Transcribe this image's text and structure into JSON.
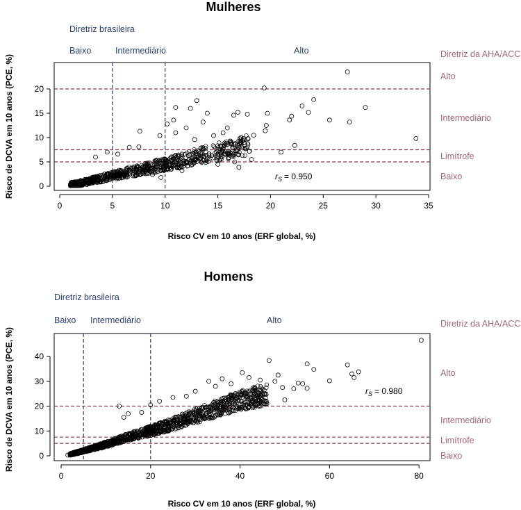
{
  "colors": {
    "brazil_guideline": "#2e3f6e",
    "aha_guideline": "#a0687a",
    "aha_line": "#8b3a4a",
    "points": "#000000"
  },
  "chart_data": [
    {
      "type": "scatter",
      "title": "Mulheres",
      "xlabel": "Risco CV em 10 anos (ERF global, %)",
      "ylabel": "Risco de DCVA em 10 anos (PCE, %)",
      "xlim": [
        0,
        35
      ],
      "ylim": [
        0,
        24
      ],
      "xticks": [
        0,
        5,
        10,
        15,
        20,
        25,
        30,
        35
      ],
      "yticks": [
        0,
        5,
        10,
        15,
        20
      ],
      "grid": false,
      "spearman_label": "r",
      "spearman_sub": "S",
      "spearman_value": "= 0.950",
      "brazil_guideline": {
        "title": "Diretriz brasileira",
        "cutoffs_x": [
          5,
          10
        ],
        "categories": [
          "Baixo",
          "Intermediário",
          "Alto"
        ]
      },
      "aha_guideline": {
        "title": "Diretriz da AHA/ACC",
        "cutoffs_y": [
          5,
          7.5,
          20
        ],
        "categories": [
          "Baixo",
          "Limítrofe",
          "Intermediário",
          "Alto"
        ]
      },
      "points": [
        [
          27.3,
          23.5
        ],
        [
          33.8,
          9.8
        ],
        [
          29.0,
          16.2
        ],
        [
          27.5,
          13.2
        ],
        [
          25.6,
          13.6
        ],
        [
          24.1,
          17.8
        ],
        [
          23.0,
          16.5
        ],
        [
          23.6,
          15.2
        ],
        [
          22.0,
          14.4
        ],
        [
          21.8,
          13.6
        ],
        [
          22.3,
          8.4
        ],
        [
          21.0,
          7.0
        ],
        [
          19.4,
          20.2
        ],
        [
          19.7,
          15.0
        ],
        [
          19.6,
          12.5
        ],
        [
          19.5,
          11.4
        ],
        [
          18.4,
          10.5
        ],
        [
          18.0,
          7.2
        ],
        [
          17.8,
          14.8
        ],
        [
          17.5,
          9.5
        ],
        [
          16.9,
          15.2
        ],
        [
          16.5,
          14.6
        ],
        [
          15.9,
          12.0
        ],
        [
          15.5,
          11.0
        ],
        [
          15.2,
          7.0
        ],
        [
          14.6,
          10.4
        ],
        [
          14.0,
          15.0
        ],
        [
          13.6,
          13.2
        ],
        [
          12.4,
          16.0
        ],
        [
          13.0,
          17.6
        ],
        [
          11.0,
          16.2
        ],
        [
          10.8,
          13.6
        ],
        [
          12.0,
          12.0
        ],
        [
          11.0,
          11.0
        ],
        [
          12.8,
          9.6
        ],
        [
          13.2,
          6.2
        ],
        [
          14.5,
          5.8
        ],
        [
          15.0,
          4.5
        ],
        [
          16.6,
          5.0
        ],
        [
          17.0,
          3.9
        ],
        [
          18.2,
          5.5
        ],
        [
          12.0,
          4.8
        ],
        [
          11.6,
          3.2
        ],
        [
          10.2,
          12.8
        ],
        [
          9.5,
          10.4
        ],
        [
          7.6,
          11.3
        ],
        [
          7.5,
          8.1
        ],
        [
          6.6,
          8.0
        ],
        [
          5.5,
          6.6
        ],
        [
          4.5,
          7.0
        ],
        [
          3.4,
          6.0
        ],
        [
          8.8,
          2.4
        ],
        [
          9.6,
          1.8
        ],
        [
          13.8,
          7.8
        ]
      ],
      "cloud": [
        [
          1.0,
          0.3
        ],
        [
          1.6,
          0.5
        ],
        [
          2.5,
          0.9
        ],
        [
          3.5,
          1.4
        ],
        [
          4.5,
          1.9
        ],
        [
          5.5,
          2.4
        ],
        [
          6.5,
          2.9
        ],
        [
          7.5,
          3.3
        ],
        [
          8.5,
          3.8
        ],
        [
          9.5,
          4.3
        ],
        [
          11,
          5.0
        ],
        [
          12.5,
          5.8
        ],
        [
          14,
          6.6
        ],
        [
          16,
          7.5
        ],
        [
          18,
          8.6
        ]
      ]
    },
    {
      "type": "scatter",
      "title": "Homens",
      "xlabel": "Risco CV em 10 anos (ERF global, %)",
      "ylabel": "Risco de DCVA em 10 anos (PCE, %)",
      "xlim": [
        0,
        82
      ],
      "ylim": [
        0,
        47
      ],
      "xticks": [
        0,
        20,
        40,
        60,
        80
      ],
      "yticks": [
        0,
        10,
        20,
        30,
        40
      ],
      "grid": false,
      "spearman_label": "r",
      "spearman_sub": "S",
      "spearman_value": "= 0.980",
      "brazil_guideline": {
        "title": "Diretriz brasileira",
        "cutoffs_x": [
          5,
          20
        ],
        "categories": [
          "Baixo",
          "Intermediário",
          "Alto"
        ]
      },
      "aha_guideline": {
        "title": "Diretriz da AHA/ACC",
        "cutoffs_y": [
          5,
          7.5,
          20
        ],
        "categories": [
          "Baixo",
          "Limítrofe",
          "Intermediário",
          "Alto"
        ]
      },
      "points": [
        [
          80.5,
          46.5
        ],
        [
          64.0,
          36.6
        ],
        [
          66.5,
          33.8
        ],
        [
          65.0,
          33.0
        ],
        [
          65.5,
          31.5
        ],
        [
          60.0,
          30.2
        ],
        [
          55.0,
          37.0
        ],
        [
          56.5,
          34.8
        ],
        [
          54.0,
          29.0
        ],
        [
          53.0,
          29.3
        ],
        [
          55.0,
          27.2
        ],
        [
          52.0,
          27.0
        ],
        [
          46.5,
          38.4
        ],
        [
          48.5,
          32.5
        ],
        [
          47.8,
          30.0
        ],
        [
          44.5,
          30.5
        ],
        [
          49.5,
          27.5
        ],
        [
          45.5,
          24.8
        ],
        [
          42.0,
          31.5
        ],
        [
          40.5,
          33.5
        ],
        [
          38.0,
          29.0
        ],
        [
          36.0,
          31.0
        ],
        [
          33.0,
          30.0
        ],
        [
          34.5,
          28.0
        ],
        [
          30.0,
          26.0
        ],
        [
          28.0,
          24.0
        ],
        [
          25.0,
          23.5
        ],
        [
          22.0,
          22.0
        ],
        [
          20.0,
          20.5
        ],
        [
          18.0,
          17.5
        ],
        [
          15.0,
          17.0
        ],
        [
          13.0,
          20.0
        ],
        [
          14.0,
          15.5
        ],
        [
          24.0,
          10.5
        ],
        [
          30.0,
          14.0
        ],
        [
          35.0,
          16.5
        ],
        [
          12.0,
          5.2
        ],
        [
          8.0,
          3.5
        ],
        [
          6.0,
          2.2
        ],
        [
          4.0,
          1.5
        ],
        [
          3.0,
          1.0
        ],
        [
          2.0,
          0.5
        ],
        [
          1.5,
          0.3
        ],
        [
          50.0,
          22.5
        ],
        [
          46.0,
          21.0
        ],
        [
          42.0,
          20.0
        ],
        [
          38.0,
          18.5
        ]
      ],
      "cloud": [
        [
          2,
          0.6
        ],
        [
          4,
          1.5
        ],
        [
          6,
          2.5
        ],
        [
          8,
          3.5
        ],
        [
          10,
          4.6
        ],
        [
          12,
          5.8
        ],
        [
          14,
          7.0
        ],
        [
          16,
          8.0
        ],
        [
          18,
          9.0
        ],
        [
          20,
          10.0
        ],
        [
          22,
          11.2
        ],
        [
          24,
          12.3
        ],
        [
          26,
          13.5
        ],
        [
          28,
          14.8
        ],
        [
          30,
          16.0
        ],
        [
          32,
          17.2
        ],
        [
          34,
          18.5
        ],
        [
          36,
          19.8
        ],
        [
          38,
          21.0
        ],
        [
          40,
          22.2
        ],
        [
          42,
          23.0
        ],
        [
          44,
          24.0
        ],
        [
          46,
          24.8
        ]
      ]
    }
  ]
}
